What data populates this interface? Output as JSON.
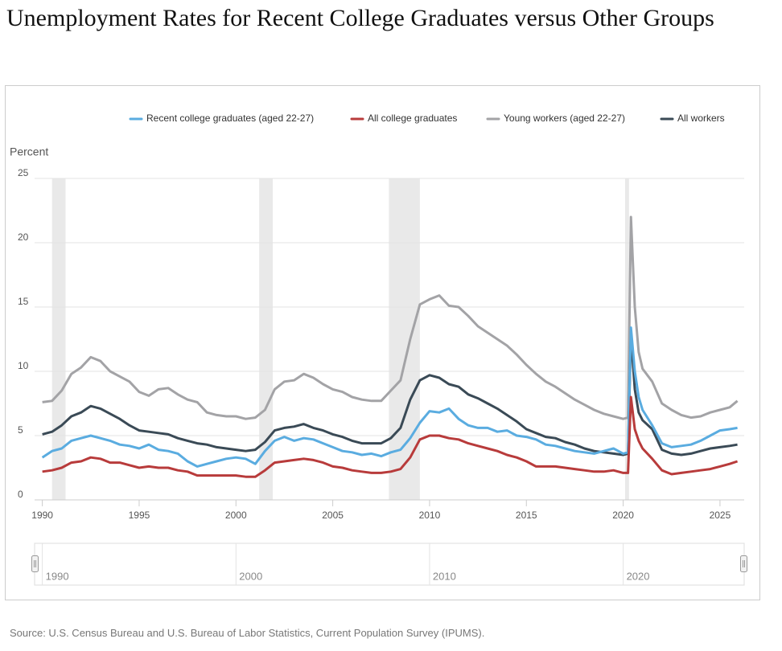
{
  "chart_data": {
    "type": "line",
    "title": "Unemployment Rates for Recent College Graduates versus Other Groups",
    "y_label": "Percent",
    "source": "Source: U.S. Census Bureau and U.S. Bureau of Labor Statistics, Current Population Survey (IPUMS).",
    "x": [
      1990.0,
      1990.5,
      1991.0,
      1991.5,
      1992.0,
      1992.5,
      1993.0,
      1993.5,
      1994.0,
      1994.5,
      1995.0,
      1995.5,
      1996.0,
      1996.5,
      1997.0,
      1997.5,
      1998.0,
      1998.5,
      1999.0,
      1999.5,
      2000.0,
      2000.5,
      2001.0,
      2001.5,
      2002.0,
      2002.5,
      2003.0,
      2003.5,
      2004.0,
      2004.5,
      2005.0,
      2005.5,
      2006.0,
      2006.5,
      2007.0,
      2007.5,
      2008.0,
      2008.5,
      2009.0,
      2009.5,
      2010.0,
      2010.5,
      2011.0,
      2011.5,
      2012.0,
      2012.5,
      2013.0,
      2013.5,
      2014.0,
      2014.5,
      2015.0,
      2015.5,
      2016.0,
      2016.5,
      2017.0,
      2017.5,
      2018.0,
      2018.5,
      2019.0,
      2019.5,
      2020.0,
      2020.25,
      2020.4,
      2020.6,
      2020.8,
      2021.0,
      2021.5,
      2022.0,
      2022.5,
      2023.0,
      2023.5,
      2024.0,
      2024.5,
      2025.0,
      2025.5,
      2025.9
    ],
    "series": [
      {
        "name": "Recent college graduates (aged 22-27)",
        "color": "#5aace0",
        "values": [
          3.3,
          3.8,
          4.0,
          4.6,
          4.8,
          5.0,
          4.8,
          4.6,
          4.3,
          4.2,
          4.0,
          4.3,
          3.9,
          3.8,
          3.6,
          3.0,
          2.6,
          2.8,
          3.0,
          3.2,
          3.3,
          3.2,
          2.8,
          3.8,
          4.6,
          4.9,
          4.6,
          4.8,
          4.7,
          4.4,
          4.1,
          3.8,
          3.7,
          3.5,
          3.6,
          3.4,
          3.7,
          3.9,
          4.8,
          6.0,
          6.9,
          6.8,
          7.1,
          6.3,
          5.8,
          5.6,
          5.6,
          5.3,
          5.4,
          5.0,
          4.9,
          4.7,
          4.3,
          4.2,
          4.0,
          3.8,
          3.7,
          3.6,
          3.8,
          4.0,
          3.6,
          3.7,
          13.4,
          10.0,
          8.0,
          7.0,
          5.8,
          4.4,
          4.1,
          4.2,
          4.3,
          4.6,
          5.0,
          5.4,
          5.5,
          5.6
        ]
      },
      {
        "name": "All college graduates",
        "color": "#b83b3b",
        "values": [
          2.2,
          2.3,
          2.5,
          2.9,
          3.0,
          3.3,
          3.2,
          2.9,
          2.9,
          2.7,
          2.5,
          2.6,
          2.5,
          2.5,
          2.3,
          2.2,
          1.9,
          1.9,
          1.9,
          1.9,
          1.9,
          1.8,
          1.8,
          2.3,
          2.9,
          3.0,
          3.1,
          3.2,
          3.1,
          2.9,
          2.6,
          2.5,
          2.3,
          2.2,
          2.1,
          2.1,
          2.2,
          2.4,
          3.3,
          4.7,
          5.0,
          5.0,
          4.8,
          4.7,
          4.4,
          4.2,
          4.0,
          3.8,
          3.5,
          3.3,
          3.0,
          2.6,
          2.6,
          2.6,
          2.5,
          2.4,
          2.3,
          2.2,
          2.2,
          2.3,
          2.1,
          2.1,
          8.0,
          5.5,
          4.6,
          4.0,
          3.2,
          2.3,
          2.0,
          2.1,
          2.2,
          2.3,
          2.4,
          2.6,
          2.8,
          3.0
        ]
      },
      {
        "name": "Young workers (aged 22-27)",
        "color": "#a3a3a6",
        "values": [
          7.6,
          7.7,
          8.5,
          9.8,
          10.3,
          11.1,
          10.8,
          10.0,
          9.6,
          9.2,
          8.4,
          8.1,
          8.6,
          8.7,
          8.2,
          7.8,
          7.6,
          6.8,
          6.6,
          6.5,
          6.5,
          6.3,
          6.4,
          7.0,
          8.6,
          9.2,
          9.3,
          9.8,
          9.5,
          9.0,
          8.6,
          8.4,
          8.0,
          7.8,
          7.7,
          7.7,
          8.5,
          9.3,
          12.5,
          15.2,
          15.6,
          15.9,
          15.1,
          15.0,
          14.3,
          13.5,
          13.0,
          12.5,
          12.0,
          11.3,
          10.5,
          9.8,
          9.2,
          8.8,
          8.3,
          7.8,
          7.4,
          7.0,
          6.7,
          6.5,
          6.3,
          6.4,
          22.0,
          15.0,
          11.5,
          10.2,
          9.2,
          7.5,
          7.0,
          6.6,
          6.4,
          6.5,
          6.8,
          7.0,
          7.2,
          7.7
        ]
      },
      {
        "name": "All workers",
        "color": "#3a4a56",
        "values": [
          5.1,
          5.3,
          5.8,
          6.5,
          6.8,
          7.3,
          7.1,
          6.7,
          6.3,
          5.8,
          5.4,
          5.3,
          5.2,
          5.1,
          4.8,
          4.6,
          4.4,
          4.3,
          4.1,
          4.0,
          3.9,
          3.8,
          3.9,
          4.5,
          5.4,
          5.6,
          5.7,
          5.9,
          5.6,
          5.4,
          5.1,
          4.9,
          4.6,
          4.4,
          4.4,
          4.4,
          4.8,
          5.6,
          7.8,
          9.3,
          9.7,
          9.5,
          9.0,
          8.8,
          8.2,
          7.9,
          7.5,
          7.1,
          6.6,
          6.1,
          5.5,
          5.2,
          4.9,
          4.8,
          4.5,
          4.3,
          4.0,
          3.8,
          3.7,
          3.6,
          3.5,
          3.6,
          12.8,
          8.6,
          6.8,
          6.2,
          5.5,
          3.9,
          3.6,
          3.5,
          3.6,
          3.8,
          4.0,
          4.1,
          4.2,
          4.3
        ]
      }
    ],
    "recessions": [
      [
        1990.5,
        1991.2
      ],
      [
        2001.2,
        2001.9
      ],
      [
        2007.9,
        2009.5
      ],
      [
        2020.1,
        2020.3
      ]
    ],
    "recession_color": "#e9e9e9",
    "xlim": [
      1989.6,
      2026.25
    ],
    "xticks": [
      1990,
      1995,
      2000,
      2005,
      2010,
      2015,
      2020,
      2025
    ],
    "ylim": [
      0,
      25
    ],
    "yticks": [
      0,
      5,
      10,
      15,
      20,
      25
    ],
    "grid": true,
    "legend": "top",
    "navigator_labels": [
      1990,
      2000,
      2010,
      2020
    ]
  }
}
